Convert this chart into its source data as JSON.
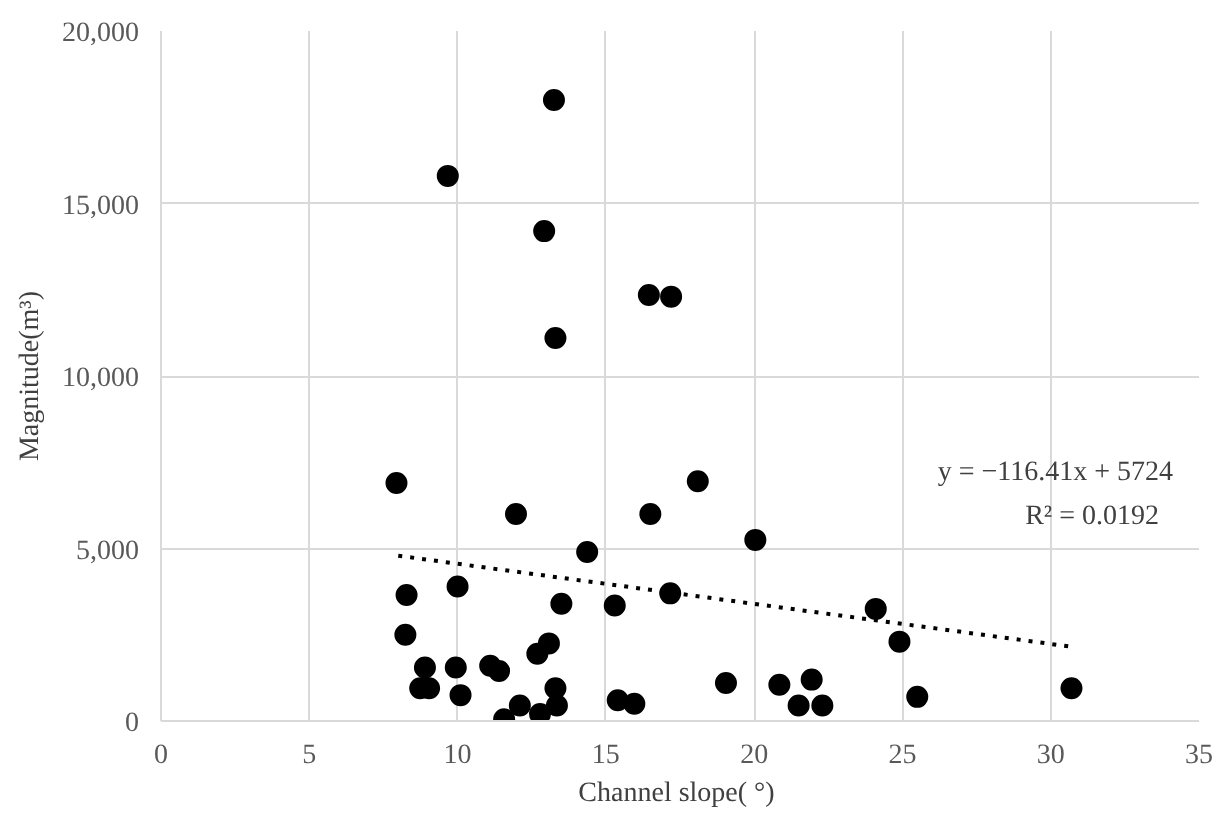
{
  "chart_data": {
    "type": "scatter",
    "xlabel": "Channel slope(  °)",
    "ylabel": "Magnitude(m³)",
    "xlim": [
      0,
      35
    ],
    "xticks": [
      0,
      5,
      10,
      15,
      20,
      25,
      30,
      35
    ],
    "ylim": [
      0,
      20000
    ],
    "yticks": [
      0,
      {
        "value": 5000,
        "label": "5,000"
      },
      {
        "value": 10000,
        "label": "10,000"
      },
      {
        "value": 15000,
        "label": "15,000"
      },
      {
        "value": 20000,
        "label": "20,000"
      }
    ],
    "grid": true,
    "marker": "circle",
    "series": [
      {
        "color": "#000000",
        "x": [
          13.25,
          9.67,
          12.92,
          16.45,
          17.2,
          13.3,
          7.94,
          11.97,
          16.5,
          14.37,
          8.28,
          10.0,
          13.5,
          15.3,
          17.17,
          8.24,
          13.08,
          12.69,
          8.9,
          9.94,
          11.1,
          11.4,
          8.74,
          9.04,
          10.1,
          13.3,
          13.35,
          15.4,
          15.96,
          12.1,
          12.78,
          11.57,
          18.1,
          20.04,
          24.1,
          24.9,
          19.05,
          20.85,
          21.94,
          21.5,
          22.3,
          25.5,
          30.7
        ],
        "values": [
          18000,
          15800,
          14200,
          12350,
          12300,
          11100,
          6900,
          6000,
          6000,
          4900,
          3650,
          3900,
          3400,
          3350,
          3700,
          2500,
          2250,
          1950,
          1550,
          1550,
          1600,
          1450,
          950,
          950,
          750,
          950,
          450,
          600,
          500,
          450,
          200,
          50,
          6950,
          5250,
          3250,
          2300,
          1100,
          1050,
          1200,
          450,
          450,
          700,
          950
        ]
      },
      {
        "type": "line",
        "color": "#000000",
        "line_style": "dotted",
        "marker": "none",
        "x": [
          8,
          30.8
        ],
        "values": [
          4790,
          2140
        ]
      }
    ],
    "annotations": [
      "y = −116.41x + 5724",
      "R²   = 0.0192"
    ]
  }
}
